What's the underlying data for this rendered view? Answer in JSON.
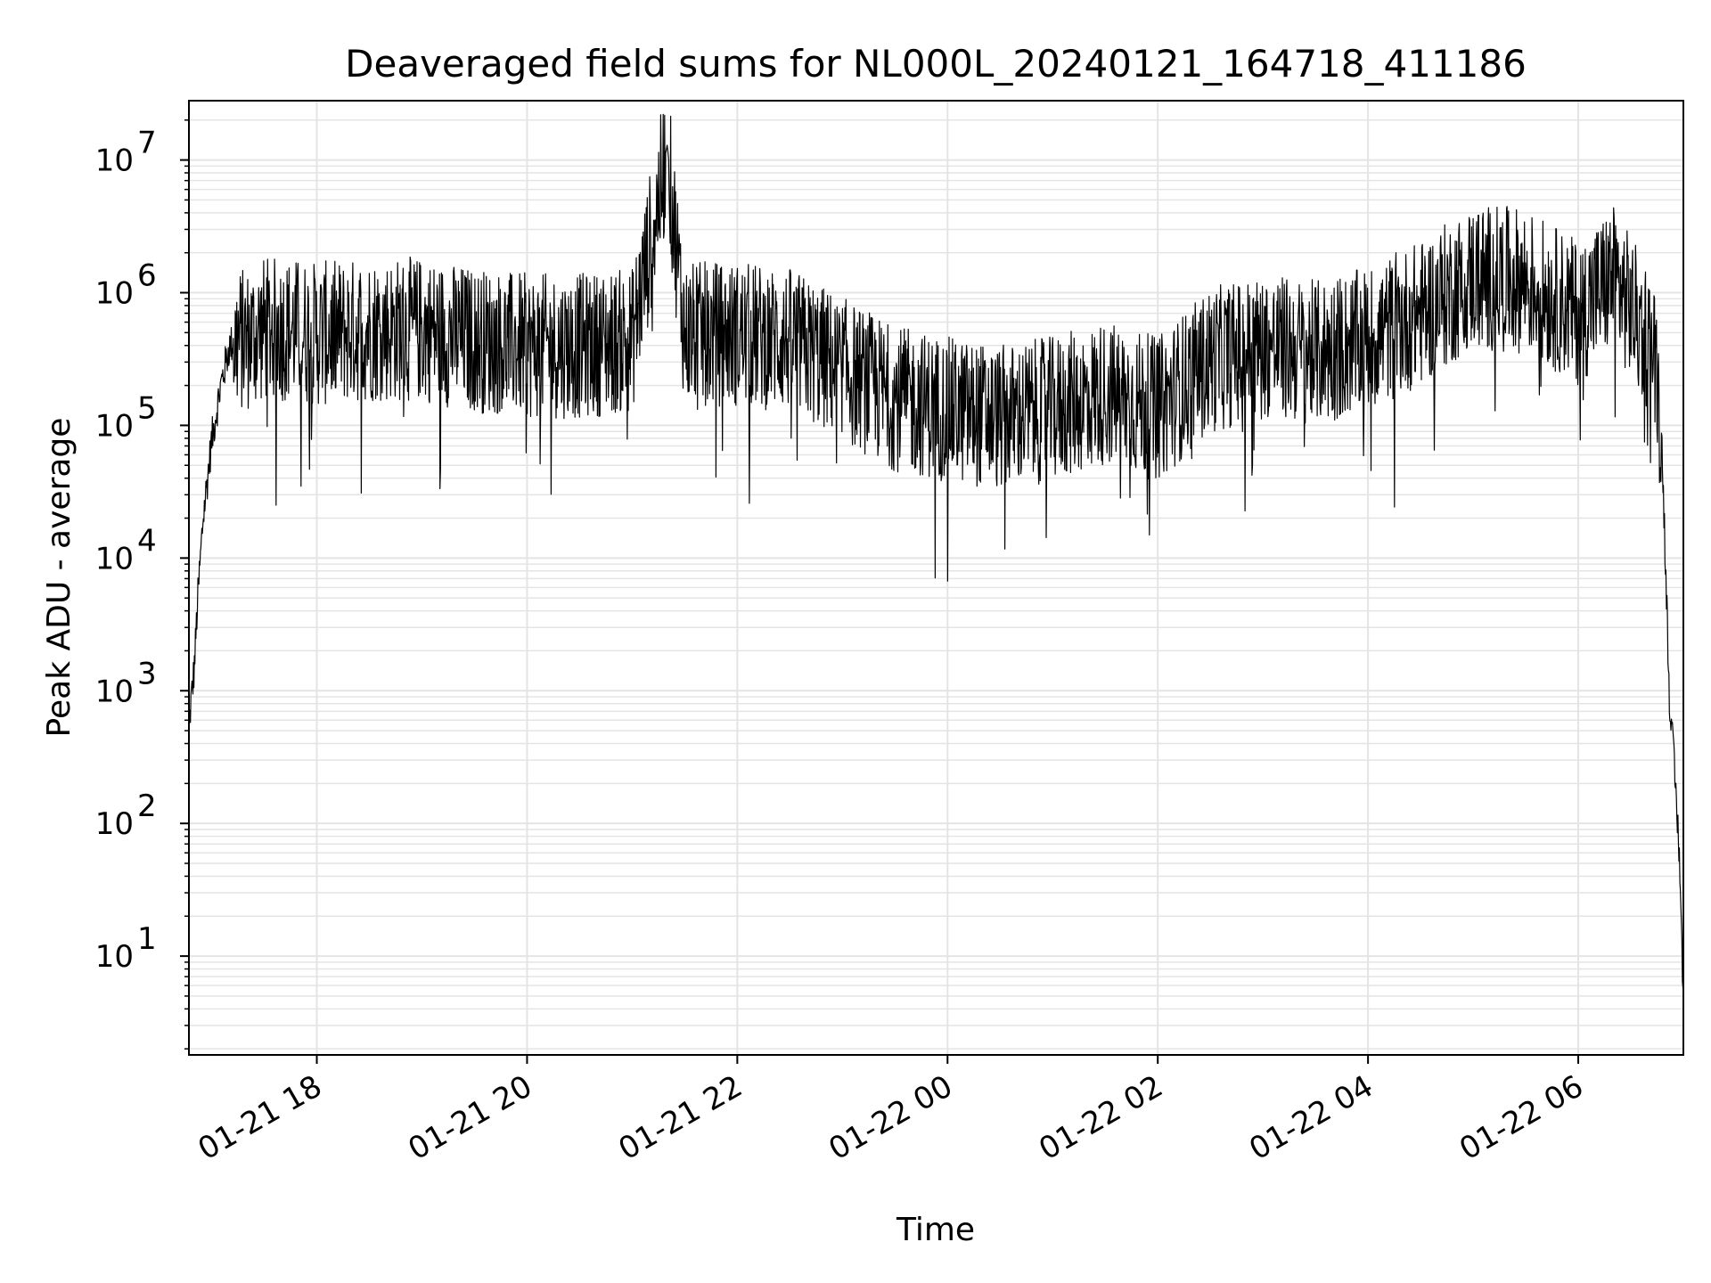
{
  "chart_data": {
    "type": "line",
    "title": "Deaveraged field sums for NL000L_20240121_164718_411186",
    "xlabel": "Time",
    "ylabel": "Peak ADU - average",
    "x_scale": "time",
    "y_scale": "log",
    "xlim": [
      "2024-01-21 16:47",
      "2024-01-22 07:00"
    ],
    "ylim": [
      1.8,
      28000000
    ],
    "grid": true,
    "grid_color": "#e4e4e4",
    "line_color": "#000000",
    "x_tick_labels": [
      "01-21 18",
      "01-21 20",
      "01-21 22",
      "01-22 00",
      "01-22 02",
      "01-22 04",
      "01-22 06"
    ],
    "x_tick_values": [
      "2024-01-21 18:00",
      "2024-01-21 20:00",
      "2024-01-21 22:00",
      "2024-01-22 00:00",
      "2024-01-22 02:00",
      "2024-01-22 04:00",
      "2024-01-22 06:00"
    ],
    "y_tick_values": [
      10,
      100,
      1000,
      10000,
      100000,
      1000000,
      10000000
    ],
    "y_tick_labels": [
      {
        "base": "10",
        "exp": "1"
      },
      {
        "base": "10",
        "exp": "2"
      },
      {
        "base": "10",
        "exp": "3"
      },
      {
        "base": "10",
        "exp": "4"
      },
      {
        "base": "10",
        "exp": "5"
      },
      {
        "base": "10",
        "exp": "6"
      },
      {
        "base": "10",
        "exp": "7"
      }
    ],
    "series": [
      {
        "values": {
          "x": [
            "2024-01-21 16:47",
            "2024-01-21 16:48",
            "2024-01-21 16:50",
            "2024-01-21 16:52",
            "2024-01-21 16:55",
            "2024-01-21 17:00",
            "2024-01-21 17:05",
            "2024-01-21 17:10",
            "2024-01-21 17:15",
            "2024-01-21 17:20",
            "2024-01-21 17:30",
            "2024-01-21 17:45",
            "2024-01-21 18:00",
            "2024-01-21 18:30",
            "2024-01-21 19:00",
            "2024-01-21 19:30",
            "2024-01-21 20:00",
            "2024-01-21 20:30",
            "2024-01-21 21:00",
            "2024-01-21 21:20",
            "2024-01-21 21:30",
            "2024-01-21 22:00",
            "2024-01-21 22:30",
            "2024-01-21 23:00",
            "2024-01-21 23:30",
            "2024-01-22 00:00",
            "2024-01-22 00:30",
            "2024-01-22 01:00",
            "2024-01-22 01:30",
            "2024-01-22 02:00",
            "2024-01-22 02:30",
            "2024-01-22 03:00",
            "2024-01-22 03:30",
            "2024-01-22 04:00",
            "2024-01-22 04:30",
            "2024-01-22 05:00",
            "2024-01-22 05:30",
            "2024-01-22 06:00",
            "2024-01-22 06:20",
            "2024-01-22 06:40",
            "2024-01-22 06:45",
            "2024-01-22 06:48",
            "2024-01-22 06:52",
            "2024-01-22 06:56",
            "2024-01-22 06:58",
            "2024-01-22 07:00"
          ],
          "y": [
            500,
            800,
            1500,
            5000,
            20000,
            80000,
            200000,
            400000,
            500000,
            500000,
            600000,
            600000,
            550000,
            600000,
            600000,
            500000,
            450000,
            450000,
            500000,
            13000000,
            550000,
            550000,
            500000,
            300000,
            180000,
            150000,
            130000,
            150000,
            200000,
            150000,
            350000,
            450000,
            400000,
            500000,
            800000,
            1500000,
            1400000,
            800000,
            1500000,
            500000,
            300000,
            60000,
            1000,
            150,
            50,
            4
          ]
        }
      }
    ]
  }
}
